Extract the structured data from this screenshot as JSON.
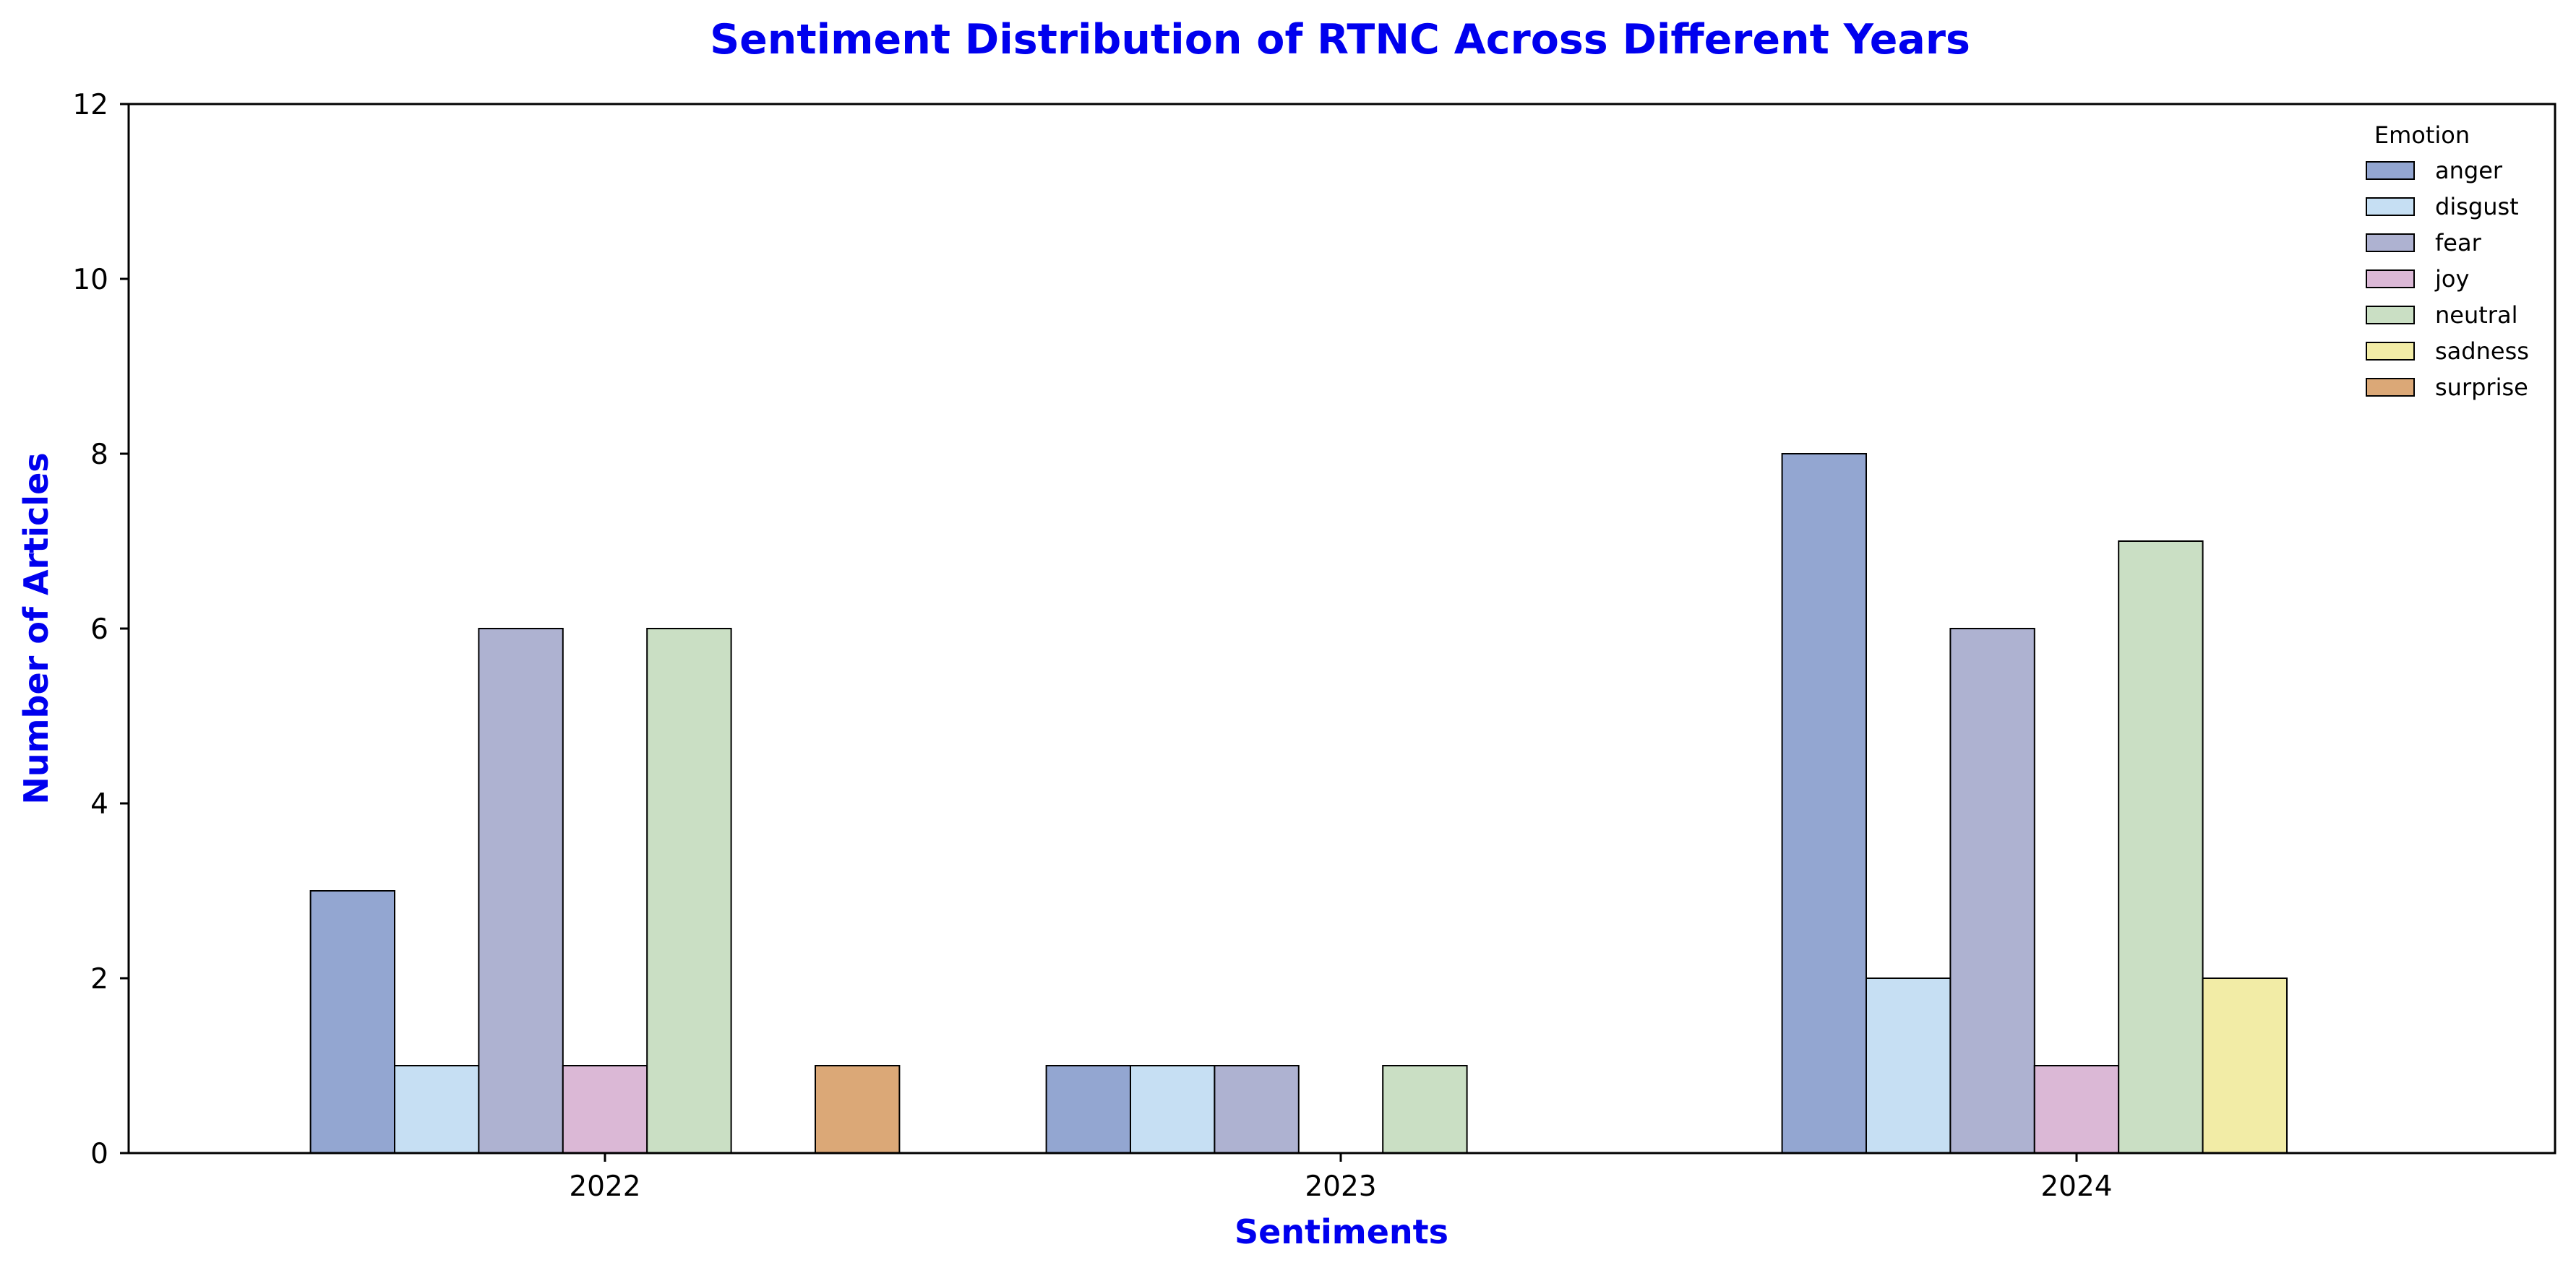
{
  "chart_data": {
    "type": "bar",
    "title": "Sentiment Distribution of RTNC Across Different Years",
    "xlabel": "Sentiments",
    "ylabel": "Number of Articles",
    "categories": [
      "2022",
      "2023",
      "2024"
    ],
    "ylim": [
      0,
      12
    ],
    "yticks": [
      0,
      2,
      4,
      6,
      8,
      10,
      12
    ],
    "grid": false,
    "legend": {
      "title": "Emotion",
      "placement": "top-right"
    },
    "series": [
      {
        "name": "anger",
        "color": "#93a6d1",
        "values": [
          3,
          1,
          8
        ]
      },
      {
        "name": "disgust",
        "color": "#c6dff3",
        "values": [
          1,
          1,
          2
        ]
      },
      {
        "name": "fear",
        "color": "#aeb2d1",
        "values": [
          6,
          1,
          6
        ]
      },
      {
        "name": "joy",
        "color": "#dbb8d6",
        "values": [
          1,
          0,
          1
        ]
      },
      {
        "name": "neutral",
        "color": "#cadfc4",
        "values": [
          6,
          1,
          7
        ]
      },
      {
        "name": "sadness",
        "color": "#f2eca6",
        "values": [
          0,
          0,
          2
        ]
      },
      {
        "name": "surprise",
        "color": "#dba877",
        "values": [
          1,
          0,
          0
        ]
      }
    ]
  },
  "colors": {
    "title": "#0000ee",
    "axis_label": "#0000ee",
    "bar_edge": "#000000",
    "axis": "#000000"
  }
}
